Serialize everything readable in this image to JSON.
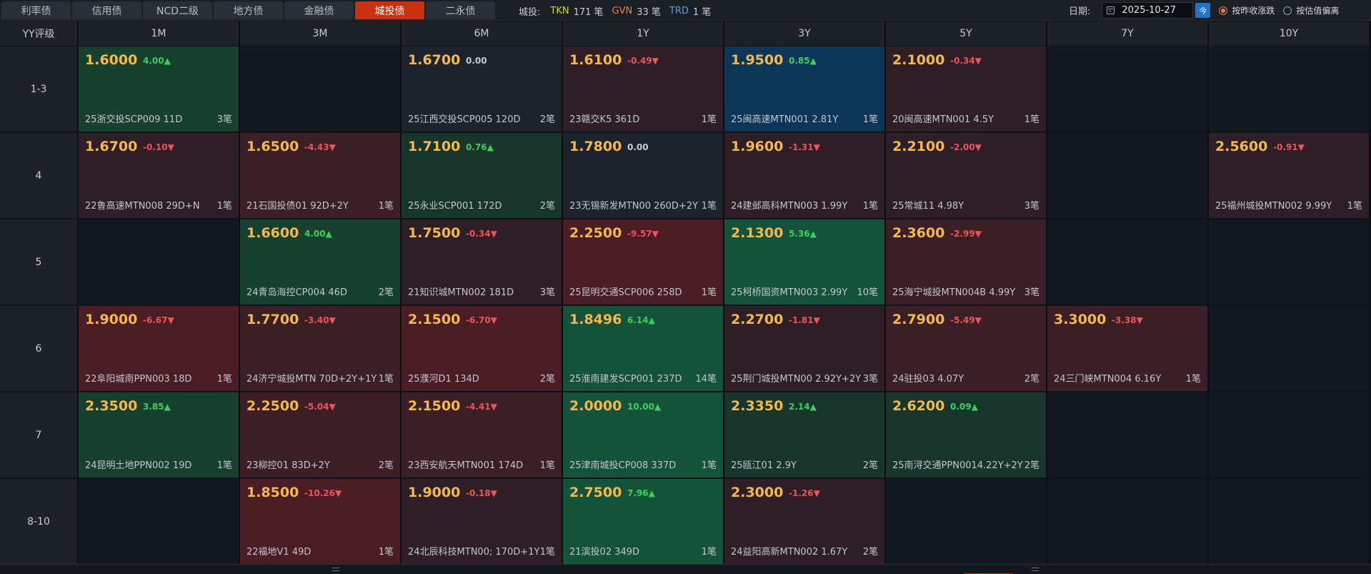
{
  "tabs": [
    {
      "label": "利率债",
      "active": false
    },
    {
      "label": "信用债",
      "active": false
    },
    {
      "label": "NCD二级",
      "active": false
    },
    {
      "label": "地方债",
      "active": false
    },
    {
      "label": "金融债",
      "active": false
    },
    {
      "label": "城投债",
      "active": true
    },
    {
      "label": "二永债",
      "active": false
    }
  ],
  "stats": {
    "label": "城投:",
    "tkn_code": "TKN",
    "tkn_count": "171 笔",
    "gvn_code": "GVN",
    "gvn_count": "33 笔",
    "trd_code": "TRD",
    "trd_count": "1 笔"
  },
  "date": {
    "label": "日期:",
    "value": "2025-10-27",
    "today_btn": "今"
  },
  "radios": [
    {
      "label": "按昨收涨跌",
      "selected": true
    },
    {
      "label": "按估值偏离",
      "selected": false
    }
  ],
  "colors": {
    "up": "#3ccf5e",
    "down": "#f0525a",
    "yield": "#f5b84a",
    "active_tab": "#c8330f"
  },
  "header": {
    "corner": "YY评级",
    "tenors": [
      "1M",
      "3M",
      "6M",
      "1Y",
      "3Y",
      "5Y",
      "7Y",
      "10Y"
    ]
  },
  "rows": [
    {
      "rating": "1-3",
      "cells": [
        {
          "yield": "1.6000",
          "change": "4.00▲",
          "dir": "up",
          "bond": "25浙交投SCP009 11D",
          "trades": "3笔",
          "tone": "t-g2"
        },
        null,
        {
          "yield": "1.6700",
          "change": "0.00",
          "dir": "zero",
          "bond": "25江西交投SCP005 120D",
          "trades": "2笔",
          "tone": "t-n"
        },
        {
          "yield": "1.6100",
          "change": "-0.49▼",
          "dir": "dn",
          "bond": "23赣交K5 361D",
          "trades": "1笔",
          "tone": "t-r1"
        },
        {
          "yield": "1.9500",
          "change": "0.85▲",
          "dir": "up",
          "bond": "25闽高速MTN001 2.81Y",
          "trades": "1笔",
          "tone": "t-b"
        },
        {
          "yield": "2.1000",
          "change": "-0.34▼",
          "dir": "dn",
          "bond": "20闽高速MTN001 4.5Y",
          "trades": "1笔",
          "tone": "t-r1"
        },
        null,
        null
      ]
    },
    {
      "rating": "4",
      "cells": [
        {
          "yield": "1.6700",
          "change": "-0.10▼",
          "dir": "dn",
          "bond": "22鲁高速MTN008 29D+N",
          "trades": "1笔",
          "tone": "t-r1"
        },
        {
          "yield": "1.6500",
          "change": "-4.43▼",
          "dir": "dn",
          "bond": "21石国投债01 92D+2Y",
          "trades": "1笔",
          "tone": "t-r2"
        },
        {
          "yield": "1.7100",
          "change": "0.76▲",
          "dir": "up",
          "bond": "25永业SCP001 172D",
          "trades": "2笔",
          "tone": "t-g1"
        },
        {
          "yield": "1.7800",
          "change": "0.00",
          "dir": "zero",
          "bond": "23无锡新发MTN00 260D+2Y",
          "trades": "1笔",
          "tone": "t-n"
        },
        {
          "yield": "1.9600",
          "change": "-1.31▼",
          "dir": "dn",
          "bond": "24建邺高科MTN003 1.99Y",
          "trades": "1笔",
          "tone": "t-r1"
        },
        {
          "yield": "2.2100",
          "change": "-2.00▼",
          "dir": "dn",
          "bond": "25常城11 4.98Y",
          "trades": "3笔",
          "tone": "t-r1"
        },
        null,
        {
          "yield": "2.5600",
          "change": "-0.91▼",
          "dir": "dn",
          "bond": "25福州城投MTN002 9.99Y",
          "trades": "1笔",
          "tone": "t-r1"
        }
      ]
    },
    {
      "rating": "5",
      "cells": [
        null,
        {
          "yield": "1.6600",
          "change": "4.00▲",
          "dir": "up",
          "bond": "24青岛海控CP004 46D",
          "trades": "2笔",
          "tone": "t-g2"
        },
        {
          "yield": "1.7500",
          "change": "-0.34▼",
          "dir": "dn",
          "bond": "21知识城MTN002 181D",
          "trades": "3笔",
          "tone": "t-r1"
        },
        {
          "yield": "2.2500",
          "change": "-9.57▼",
          "dir": "dn",
          "bond": "25昆明交通SCP006 258D",
          "trades": "1笔",
          "tone": "t-r3"
        },
        {
          "yield": "2.1300",
          "change": "5.36▲",
          "dir": "up",
          "bond": "25柯桥国资MTN003 2.99Y",
          "trades": "10笔",
          "tone": "t-g3"
        },
        {
          "yield": "2.3600",
          "change": "-2.99▼",
          "dir": "dn",
          "bond": "25海宁城投MTN004B 4.99Y",
          "trades": "3笔",
          "tone": "t-r2"
        },
        null,
        null
      ]
    },
    {
      "rating": "6",
      "cells": [
        {
          "yield": "1.9000",
          "change": "-6.67▼",
          "dir": "dn",
          "bond": "22阜阳城南PPN003 18D",
          "trades": "1笔",
          "tone": "t-r3"
        },
        {
          "yield": "1.7700",
          "change": "-3.40▼",
          "dir": "dn",
          "bond": "24济宁城投MTN 70D+2Y+1Y",
          "trades": "1笔",
          "tone": "t-r2"
        },
        {
          "yield": "2.1500",
          "change": "-6.70▼",
          "dir": "dn",
          "bond": "25濮河D1 134D",
          "trades": "2笔",
          "tone": "t-r3"
        },
        {
          "yield": "1.8496",
          "change": "6.14▲",
          "dir": "up",
          "bond": "25淮南建发SCP001 237D",
          "trades": "14笔",
          "tone": "t-g3"
        },
        {
          "yield": "2.2700",
          "change": "-1.81▼",
          "dir": "dn",
          "bond": "25荆门城投MTN00 2.92Y+2Y",
          "trades": "3笔",
          "tone": "t-r1"
        },
        {
          "yield": "2.7900",
          "change": "-5.49▼",
          "dir": "dn",
          "bond": "24驻投03 4.07Y",
          "trades": "2笔",
          "tone": "t-r2"
        },
        {
          "yield": "3.3000",
          "change": "-3.38▼",
          "dir": "dn",
          "bond": "24三门峡MTN004 6.16Y",
          "trades": "1笔",
          "tone": "t-r2"
        },
        null
      ]
    },
    {
      "rating": "7",
      "cells": [
        {
          "yield": "2.3500",
          "change": "3.85▲",
          "dir": "up",
          "bond": "24昆明土地PPN002 19D",
          "trades": "1笔",
          "tone": "t-g2"
        },
        {
          "yield": "2.2500",
          "change": "-5.04▼",
          "dir": "dn",
          "bond": "23柳控01 83D+2Y",
          "trades": "2笔",
          "tone": "t-r2"
        },
        {
          "yield": "2.1500",
          "change": "-4.41▼",
          "dir": "dn",
          "bond": "23西安航天MTN001 174D",
          "trades": "1笔",
          "tone": "t-r2"
        },
        {
          "yield": "2.0000",
          "change": "10.00▲",
          "dir": "up",
          "bond": "25津南城投CP008 337D",
          "trades": "1笔",
          "tone": "t-g3"
        },
        {
          "yield": "2.3350",
          "change": "2.14▲",
          "dir": "up",
          "bond": "25瓯江01 2.9Y",
          "trades": "2笔",
          "tone": "t-g1"
        },
        {
          "yield": "2.6200",
          "change": "0.09▲",
          "dir": "up",
          "bond": "25南浔交通PPN0014.22Y+2Y",
          "trades": "2笔",
          "tone": "t-g1"
        },
        null,
        null
      ]
    },
    {
      "rating": "8-10",
      "cells": [
        null,
        {
          "yield": "1.8500",
          "change": "-10.26▼",
          "dir": "dn",
          "bond": "22福地V1 49D",
          "trades": "1笔",
          "tone": "t-r3"
        },
        {
          "yield": "1.9000",
          "change": "-0.18▼",
          "dir": "dn",
          "bond": "24北辰科技MTN00; 170D+1Y",
          "trades": "1笔",
          "tone": "t-r1"
        },
        {
          "yield": "2.7500",
          "change": "7.96▲",
          "dir": "up",
          "bond": "21滨投02 349D",
          "trades": "1笔",
          "tone": "t-g3"
        },
        {
          "yield": "2.3000",
          "change": "-1.26▼",
          "dir": "dn",
          "bond": "24益阳高新MTN002 1.67Y",
          "trades": "2笔",
          "tone": "t-r1"
        },
        null,
        null,
        null
      ]
    }
  ]
}
